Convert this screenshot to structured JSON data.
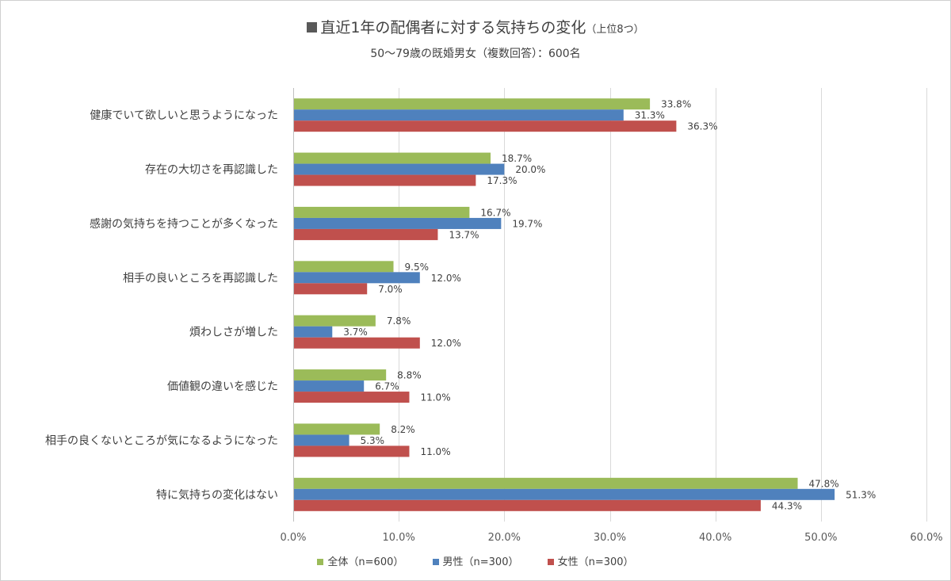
{
  "chart_data": {
    "type": "bar",
    "orientation": "horizontal",
    "title": "直近1年の配偶者に対する気持ちの変化",
    "title_suffix": "（上位8つ）",
    "subtitle": "50～79歳の既婚男女（複数回答）：600名",
    "categories": [
      "健康でいて欲しいと思うようになった",
      "存在の大切さを再認識した",
      "感謝の気持ちを持つことが多くなった",
      "相手の良いところを再認識した",
      "煩わしさが増した",
      "価値観の違いを感じた",
      "相手の良くないところが気になるようになった",
      "特に気持ちの変化はない"
    ],
    "series": [
      {
        "name": "全体（n=600）",
        "color": "#9bbb59",
        "values": [
          33.8,
          18.7,
          16.7,
          9.5,
          7.8,
          8.8,
          8.2,
          47.8
        ]
      },
      {
        "name": "男性（n=300）",
        "color": "#4f81bd",
        "values": [
          31.3,
          20.0,
          19.7,
          12.0,
          3.7,
          6.7,
          5.3,
          51.3
        ]
      },
      {
        "name": "女性（n=300）",
        "color": "#c0504d",
        "values": [
          36.3,
          17.3,
          13.7,
          7.0,
          12.0,
          11.0,
          11.0,
          44.3
        ]
      }
    ],
    "xlim": [
      0,
      60
    ],
    "xticks": [
      0,
      10,
      20,
      30,
      40,
      50,
      60
    ],
    "xtick_labels": [
      "0.0%",
      "10.0%",
      "20.0%",
      "30.0%",
      "40.0%",
      "50.0%",
      "60.0%"
    ],
    "grid": true,
    "legend_position": "bottom",
    "data_labels": true
  }
}
